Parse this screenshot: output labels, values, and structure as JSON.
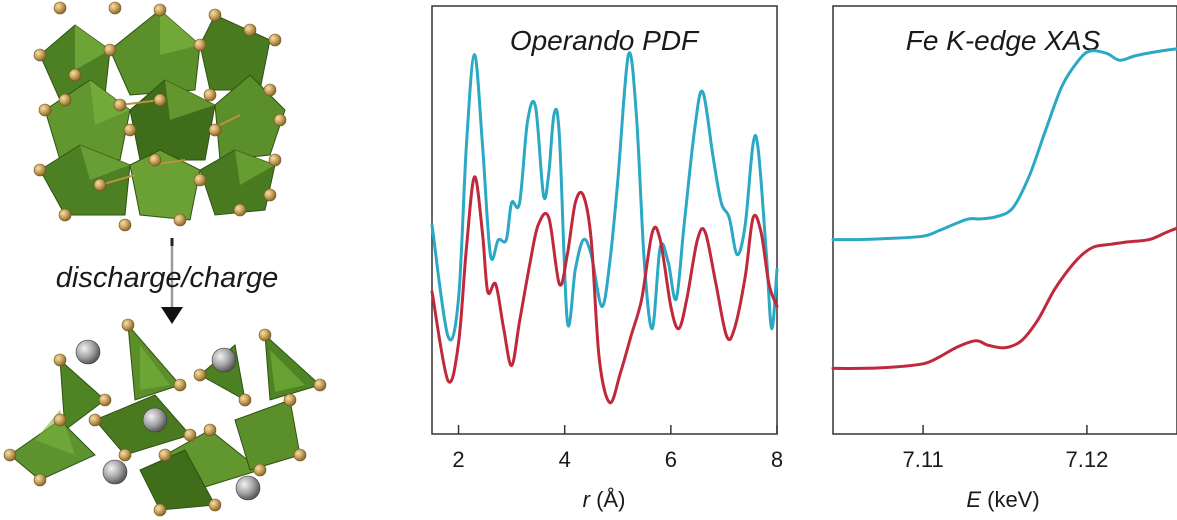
{
  "left_panel": {
    "process_label": "discharge/charge"
  },
  "chart_data": [
    {
      "type": "line",
      "title": "Operando PDF",
      "xlabel_symbol": "r",
      "xlabel_unit": "(Å)",
      "xlim": [
        1.5,
        8.0
      ],
      "xticks": [
        2,
        4,
        6,
        8
      ],
      "tick_labels": [
        "2",
        "4",
        "6",
        "8"
      ],
      "y_axis": "no ticks (offset traces)",
      "grid": false,
      "series": [
        {
          "color": "#2aa8c4",
          "points": [
            [
              1.5,
              0.5
            ],
            [
              1.8,
              0.2
            ],
            [
              2.0,
              0.3
            ],
            [
              2.15,
              0.72
            ],
            [
              2.3,
              0.96
            ],
            [
              2.45,
              0.72
            ],
            [
              2.6,
              0.42
            ],
            [
              2.75,
              0.46
            ],
            [
              2.9,
              0.46
            ],
            [
              3.0,
              0.56
            ],
            [
              3.15,
              0.56
            ],
            [
              3.3,
              0.78
            ],
            [
              3.45,
              0.82
            ],
            [
              3.6,
              0.58
            ],
            [
              3.7,
              0.64
            ],
            [
              3.8,
              0.8
            ],
            [
              3.9,
              0.74
            ],
            [
              4.05,
              0.24
            ],
            [
              4.2,
              0.38
            ],
            [
              4.35,
              0.46
            ],
            [
              4.5,
              0.42
            ],
            [
              4.7,
              0.28
            ],
            [
              4.85,
              0.4
            ],
            [
              5.0,
              0.62
            ],
            [
              5.2,
              0.96
            ],
            [
              5.35,
              0.8
            ],
            [
              5.5,
              0.4
            ],
            [
              5.65,
              0.22
            ],
            [
              5.8,
              0.44
            ],
            [
              5.95,
              0.4
            ],
            [
              6.1,
              0.3
            ],
            [
              6.25,
              0.5
            ],
            [
              6.45,
              0.76
            ],
            [
              6.6,
              0.86
            ],
            [
              6.8,
              0.68
            ],
            [
              6.95,
              0.56
            ],
            [
              7.1,
              0.52
            ],
            [
              7.25,
              0.42
            ],
            [
              7.4,
              0.5
            ],
            [
              7.55,
              0.72
            ],
            [
              7.65,
              0.7
            ],
            [
              7.8,
              0.42
            ],
            [
              7.9,
              0.22
            ],
            [
              8.0,
              0.38
            ]
          ]
        },
        {
          "color": "#c0283c",
          "points": [
            [
              1.5,
              0.32
            ],
            [
              1.8,
              0.08
            ],
            [
              2.0,
              0.18
            ],
            [
              2.15,
              0.44
            ],
            [
              2.3,
              0.63
            ],
            [
              2.45,
              0.48
            ],
            [
              2.55,
              0.32
            ],
            [
              2.7,
              0.34
            ],
            [
              2.85,
              0.22
            ],
            [
              3.0,
              0.12
            ],
            [
              3.15,
              0.24
            ],
            [
              3.35,
              0.4
            ],
            [
              3.5,
              0.5
            ],
            [
              3.7,
              0.52
            ],
            [
              3.9,
              0.34
            ],
            [
              4.05,
              0.42
            ],
            [
              4.2,
              0.56
            ],
            [
              4.35,
              0.58
            ],
            [
              4.5,
              0.46
            ],
            [
              4.65,
              0.14
            ],
            [
              4.85,
              0.02
            ],
            [
              5.05,
              0.1
            ],
            [
              5.25,
              0.2
            ],
            [
              5.45,
              0.3
            ],
            [
              5.65,
              0.48
            ],
            [
              5.8,
              0.46
            ],
            [
              6.0,
              0.28
            ],
            [
              6.15,
              0.22
            ],
            [
              6.3,
              0.3
            ],
            [
              6.5,
              0.46
            ],
            [
              6.65,
              0.48
            ],
            [
              6.85,
              0.34
            ],
            [
              7.05,
              0.2
            ],
            [
              7.2,
              0.22
            ],
            [
              7.4,
              0.36
            ],
            [
              7.55,
              0.52
            ],
            [
              7.7,
              0.48
            ],
            [
              7.85,
              0.34
            ],
            [
              8.0,
              0.28
            ]
          ]
        }
      ]
    },
    {
      "type": "line",
      "title": "Fe K-edge XAS",
      "xlabel_symbol": "E",
      "xlabel_unit": "(keV)",
      "xlim": [
        7.1045,
        7.1255
      ],
      "xticks": [
        7.11,
        7.12
      ],
      "tick_labels": [
        "7.11",
        "7.12"
      ],
      "y_axis": "no ticks (offset traces)",
      "grid": false,
      "series": [
        {
          "color": "#2aa8c4",
          "points": [
            [
              7.1045,
              0.08
            ],
            [
              7.106,
              0.08
            ],
            [
              7.108,
              0.085
            ],
            [
              7.11,
              0.095
            ],
            [
              7.111,
              0.12
            ],
            [
              7.112,
              0.15
            ],
            [
              7.1128,
              0.17
            ],
            [
              7.1135,
              0.17
            ],
            [
              7.1145,
              0.18
            ],
            [
              7.1155,
              0.22
            ],
            [
              7.1165,
              0.36
            ],
            [
              7.1175,
              0.56
            ],
            [
              7.1185,
              0.75
            ],
            [
              7.1195,
              0.86
            ],
            [
              7.1202,
              0.9
            ],
            [
              7.1212,
              0.89
            ],
            [
              7.122,
              0.86
            ],
            [
              7.123,
              0.88
            ],
            [
              7.1245,
              0.9
            ],
            [
              7.1255,
              0.91
            ]
          ]
        },
        {
          "color": "#c0283c",
          "points": [
            [
              7.1045,
              -0.48
            ],
            [
              7.106,
              -0.48
            ],
            [
              7.108,
              -0.475
            ],
            [
              7.11,
              -0.46
            ],
            [
              7.111,
              -0.43
            ],
            [
              7.112,
              -0.39
            ],
            [
              7.1132,
              -0.36
            ],
            [
              7.114,
              -0.38
            ],
            [
              7.115,
              -0.39
            ],
            [
              7.116,
              -0.36
            ],
            [
              7.117,
              -0.27
            ],
            [
              7.118,
              -0.14
            ],
            [
              7.119,
              -0.04
            ],
            [
              7.1198,
              0.02
            ],
            [
              7.1205,
              0.05
            ],
            [
              7.1215,
              0.06
            ],
            [
              7.1225,
              0.07
            ],
            [
              7.1238,
              0.08
            ],
            [
              7.1248,
              0.11
            ],
            [
              7.1255,
              0.13
            ]
          ]
        }
      ]
    }
  ]
}
